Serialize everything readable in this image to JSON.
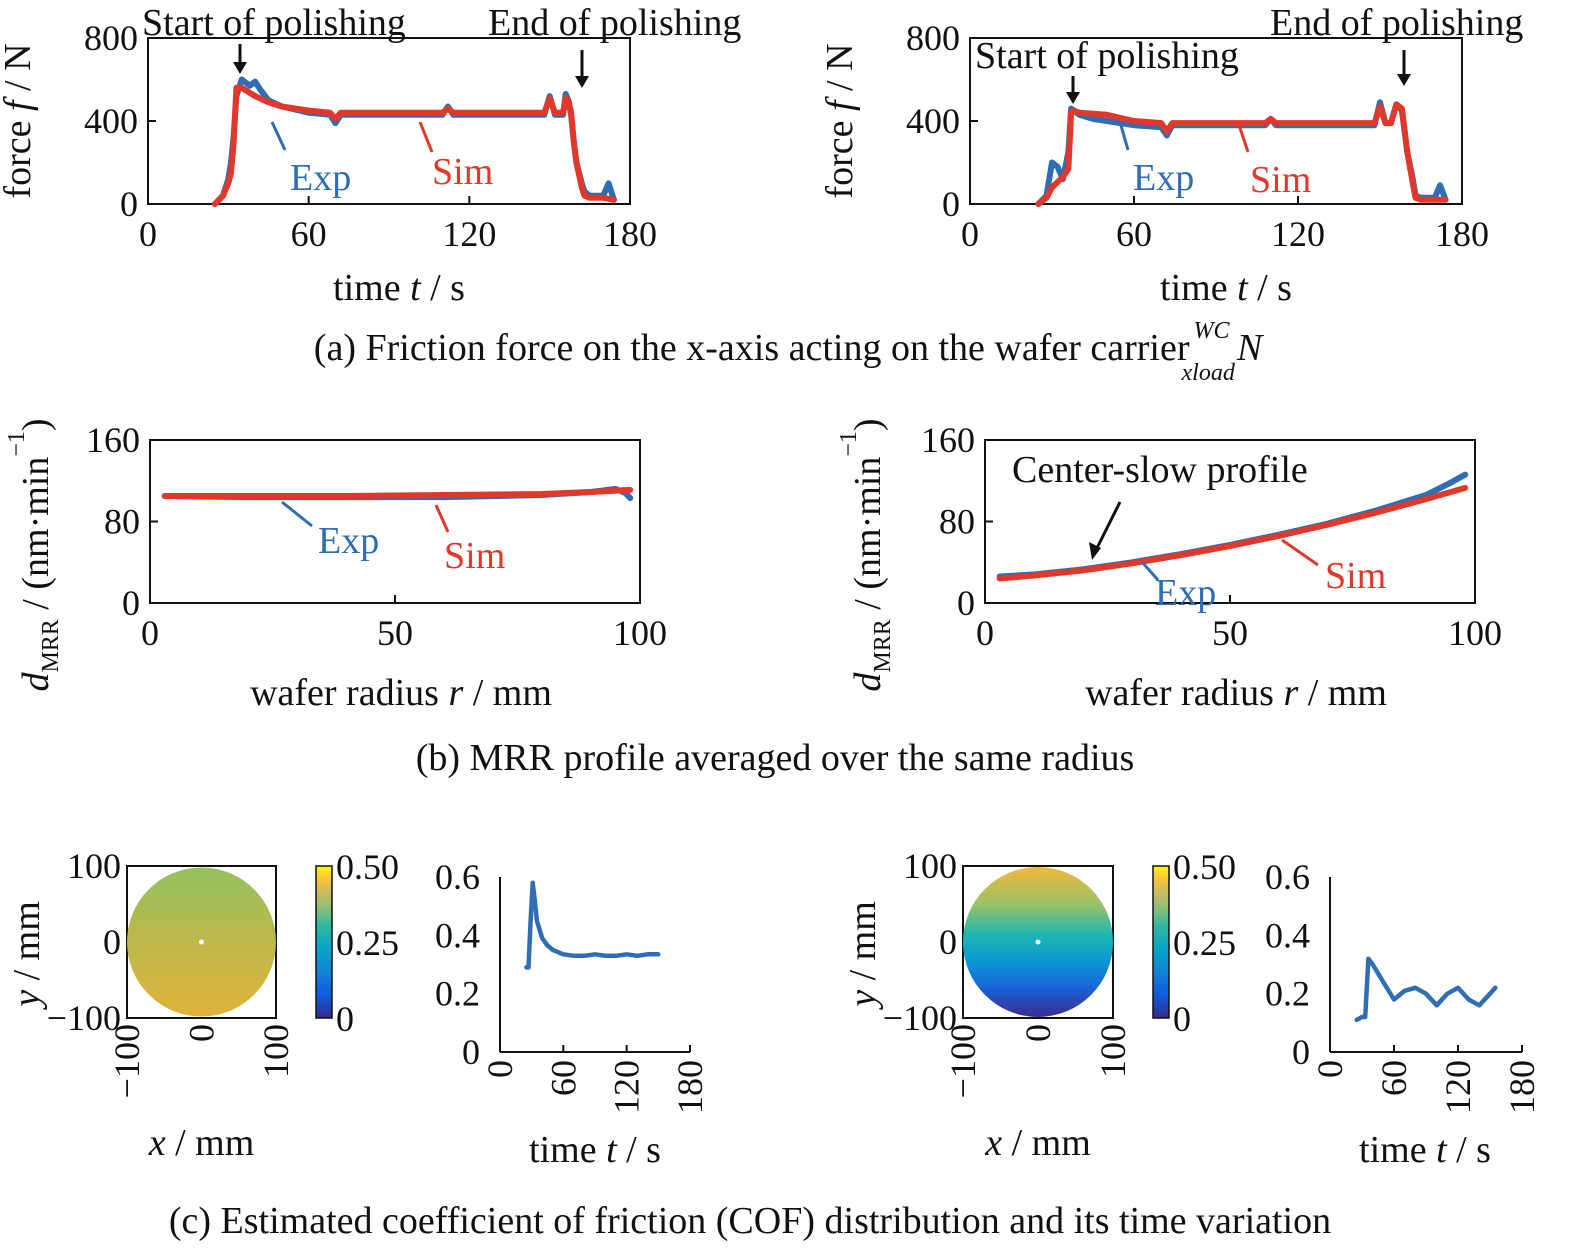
{
  "colors": {
    "exp": "#2f6db5",
    "sim": "#e0392b",
    "axis": "#111111"
  },
  "captions": {
    "a": "(a) Friction force on the x-axis acting on the wafer carrier",
    "a_sup": "WC",
    "a_sub": "xload",
    "a_sym": "N",
    "b": "(b) MRR profile averaged over the same radius",
    "c": "(c) Estimated coefficient of friction (COF) distribution and its time variation"
  },
  "chart_data": [
    {
      "id": "a-left",
      "type": "line",
      "xlabel": "time t / s",
      "ylabel": "force f / N",
      "xlim": [
        0,
        180
      ],
      "ylim": [
        0,
        800
      ],
      "xticks": [
        0,
        60,
        120,
        180
      ],
      "yticks": [
        0,
        400,
        800
      ],
      "annotations": [
        "Start of polishing",
        "End of polishing"
      ],
      "series": [
        {
          "name": "Exp",
          "x": [
            25,
            28,
            30,
            31,
            32,
            33,
            35,
            38,
            40,
            42,
            45,
            50,
            60,
            68,
            70,
            72,
            80,
            100,
            110,
            112,
            114,
            120,
            140,
            148,
            150,
            152,
            155,
            156,
            157,
            158,
            159,
            160,
            162,
            163,
            165,
            170,
            172,
            174
          ],
          "y": [
            0,
            40,
            120,
            200,
            330,
            520,
            600,
            570,
            590,
            550,
            500,
            470,
            440,
            430,
            390,
            430,
            430,
            430,
            430,
            470,
            430,
            430,
            430,
            430,
            520,
            430,
            430,
            530,
            500,
            430,
            300,
            200,
            100,
            60,
            40,
            40,
            100,
            20
          ]
        },
        {
          "name": "Sim",
          "x": [
            25,
            28,
            30,
            31,
            32,
            33,
            35,
            40,
            45,
            50,
            60,
            68,
            70,
            72,
            80,
            100,
            110,
            112,
            114,
            120,
            140,
            148,
            150,
            152,
            155,
            156,
            157,
            158,
            159,
            160,
            162,
            163,
            165,
            170,
            174
          ],
          "y": [
            0,
            40,
            100,
            150,
            300,
            560,
            560,
            520,
            490,
            470,
            450,
            440,
            410,
            440,
            440,
            440,
            440,
            460,
            440,
            440,
            440,
            440,
            510,
            440,
            440,
            510,
            500,
            440,
            300,
            200,
            80,
            40,
            30,
            30,
            20
          ]
        }
      ]
    },
    {
      "id": "a-right",
      "type": "line",
      "xlabel": "time t / s",
      "ylabel": "force f / N",
      "xlim": [
        0,
        180
      ],
      "ylim": [
        0,
        800
      ],
      "xticks": [
        0,
        60,
        120,
        180
      ],
      "yticks": [
        0,
        400,
        800
      ],
      "annotations": [
        "Start of polishing",
        "End of polishing"
      ],
      "series": [
        {
          "name": "Exp",
          "x": [
            25,
            28,
            30,
            32,
            34,
            36,
            37,
            38,
            40,
            45,
            50,
            60,
            70,
            72,
            74,
            80,
            100,
            108,
            110,
            112,
            120,
            140,
            148,
            150,
            152,
            154,
            156,
            158,
            160,
            162,
            163,
            165,
            170,
            172,
            174
          ],
          "y": [
            0,
            40,
            200,
            180,
            120,
            250,
            460,
            450,
            430,
            410,
            400,
            380,
            370,
            330,
            380,
            380,
            380,
            380,
            410,
            380,
            380,
            380,
            380,
            490,
            390,
            390,
            480,
            450,
            250,
            120,
            40,
            30,
            30,
            90,
            20
          ]
        },
        {
          "name": "Sim",
          "x": [
            25,
            28,
            30,
            34,
            36,
            37,
            38,
            40,
            50,
            60,
            70,
            72,
            74,
            80,
            100,
            108,
            110,
            112,
            120,
            140,
            148,
            150,
            152,
            154,
            156,
            158,
            160,
            162,
            163,
            165,
            170,
            174
          ],
          "y": [
            0,
            30,
            80,
            130,
            170,
            440,
            450,
            440,
            430,
            400,
            390,
            350,
            390,
            390,
            390,
            390,
            410,
            390,
            390,
            390,
            390,
            470,
            390,
            390,
            480,
            460,
            250,
            100,
            30,
            20,
            20,
            20
          ]
        }
      ]
    },
    {
      "id": "b-left",
      "type": "line",
      "xlabel": "wafer radius r / mm",
      "ylabel": "d_MRR / (nm·min⁻¹)",
      "xlim": [
        0,
        100
      ],
      "ylim": [
        0,
        160
      ],
      "xticks": [
        0,
        50,
        100
      ],
      "yticks": [
        0,
        80,
        160
      ],
      "series": [
        {
          "name": "Exp",
          "x": [
            3,
            20,
            40,
            60,
            80,
            90,
            95,
            97,
            98
          ],
          "y": [
            105,
            104,
            104,
            104,
            106,
            109,
            112,
            108,
            103
          ]
        },
        {
          "name": "Sim",
          "x": [
            3,
            20,
            40,
            60,
            80,
            90,
            98
          ],
          "y": [
            105,
            105,
            105,
            106,
            107,
            109,
            111
          ]
        }
      ]
    },
    {
      "id": "b-right",
      "type": "line",
      "xlabel": "wafer radius r / mm",
      "ylabel": "d_MRR / (nm·min⁻¹)",
      "xlim": [
        0,
        100
      ],
      "ylim": [
        0,
        160
      ],
      "xticks": [
        0,
        50,
        100
      ],
      "yticks": [
        0,
        80,
        160
      ],
      "annotations": [
        "Center-slow profile"
      ],
      "series": [
        {
          "name": "Exp",
          "x": [
            3,
            10,
            20,
            30,
            40,
            50,
            60,
            70,
            80,
            90,
            95,
            98
          ],
          "y": [
            26,
            28,
            33,
            40,
            48,
            57,
            67,
            78,
            91,
            106,
            118,
            126
          ]
        },
        {
          "name": "Sim",
          "x": [
            3,
            10,
            20,
            30,
            40,
            50,
            60,
            70,
            80,
            90,
            98
          ],
          "y": [
            24,
            27,
            32,
            39,
            47,
            56,
            66,
            77,
            89,
            102,
            113
          ]
        }
      ]
    },
    {
      "id": "c-left-map",
      "type": "heatmap",
      "xlabel": "x / mm",
      "ylabel": "y / mm",
      "xlim": [
        -100,
        100
      ],
      "ylim": [
        -100,
        100
      ],
      "xticks": [
        "−100",
        "0",
        "100"
      ],
      "yticks": [
        "100",
        "0",
        "−100"
      ],
      "colorbar": {
        "min": 0,
        "max": 0.5,
        "ticks": [
          "0.50",
          "0.25",
          "0"
        ]
      },
      "value_top": 0.33,
      "value_bottom": 0.36
    },
    {
      "id": "c-left-line",
      "type": "line",
      "xlabel": "time t / s",
      "xlim": [
        0,
        180
      ],
      "ylim": [
        0,
        0.6
      ],
      "xticks": [
        0,
        60,
        120,
        180
      ],
      "yticks": [
        "0",
        "0.2",
        "0.4",
        "0.6"
      ],
      "series": [
        {
          "name": "",
          "x": [
            25,
            27,
            29,
            31,
            33,
            35,
            40,
            45,
            50,
            60,
            70,
            80,
            90,
            100,
            110,
            120,
            130,
            140,
            150
          ],
          "y": [
            0.29,
            0.29,
            0.45,
            0.58,
            0.52,
            0.45,
            0.39,
            0.365,
            0.35,
            0.335,
            0.33,
            0.33,
            0.335,
            0.33,
            0.33,
            0.335,
            0.33,
            0.335,
            0.335
          ]
        }
      ]
    },
    {
      "id": "c-right-map",
      "type": "heatmap",
      "xlabel": "x / mm",
      "ylabel": "y / mm",
      "xlim": [
        -100,
        100
      ],
      "ylim": [
        -100,
        100
      ],
      "xticks": [
        "−100",
        "0",
        "100"
      ],
      "yticks": [
        "100",
        "0",
        "−100"
      ],
      "colorbar": {
        "min": 0,
        "max": 0.5,
        "ticks": [
          "0.50",
          "0.25",
          "0"
        ]
      },
      "value_top": 0.37,
      "value_bottom": 0.06
    },
    {
      "id": "c-right-line",
      "type": "line",
      "xlabel": "time t / s",
      "xlim": [
        0,
        180
      ],
      "ylim": [
        0,
        0.6
      ],
      "xticks": [
        0,
        60,
        120,
        180
      ],
      "yticks": [
        "0",
        "0.2",
        "0.4",
        "0.6"
      ],
      "series": [
        {
          "name": "",
          "x": [
            25,
            30,
            33,
            36,
            40,
            50,
            60,
            70,
            80,
            90,
            100,
            110,
            120,
            130,
            140,
            150,
            155
          ],
          "y": [
            0.11,
            0.12,
            0.12,
            0.32,
            0.3,
            0.24,
            0.18,
            0.21,
            0.22,
            0.2,
            0.16,
            0.2,
            0.22,
            0.18,
            0.16,
            0.2,
            0.22
          ]
        }
      ]
    }
  ]
}
